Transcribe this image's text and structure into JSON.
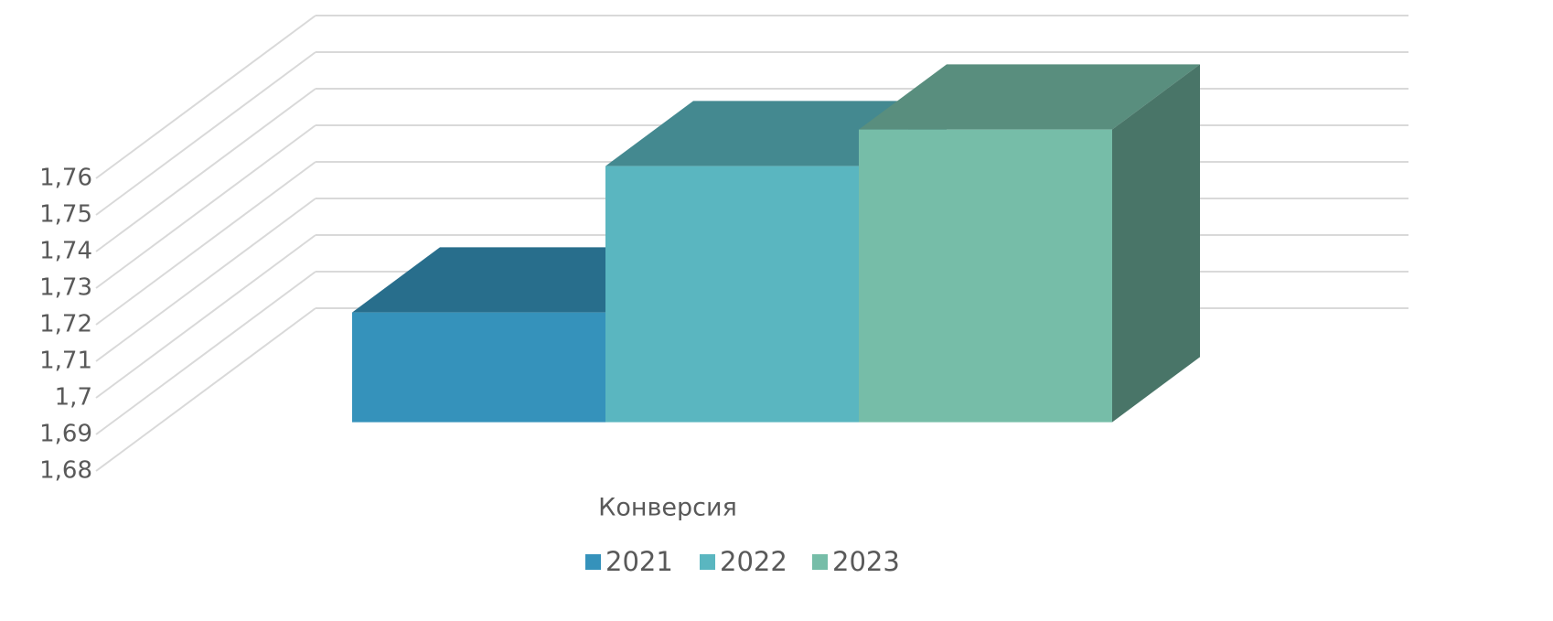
{
  "chart_data": {
    "type": "bar",
    "categories": [
      "Конверсия"
    ],
    "series": [
      {
        "name": "2021",
        "color": "#3592bb",
        "values": [
          1.71
        ]
      },
      {
        "name": "2022",
        "color": "#5ab6c0",
        "values": [
          1.75
        ]
      },
      {
        "name": "2023",
        "color": "#76bda8",
        "values": [
          1.76
        ]
      }
    ],
    "ylim": [
      1.68,
      1.76
    ],
    "yticks": [
      {
        "value": 1.68,
        "label": "1,68"
      },
      {
        "value": 1.69,
        "label": "1,69"
      },
      {
        "value": 1.7,
        "label": "1,7"
      },
      {
        "value": 1.71,
        "label": "1,71"
      },
      {
        "value": 1.72,
        "label": "1,72"
      },
      {
        "value": 1.73,
        "label": "1,73"
      },
      {
        "value": 1.74,
        "label": "1,74"
      },
      {
        "value": 1.75,
        "label": "1,75"
      },
      {
        "value": 1.76,
        "label": "1,76"
      }
    ],
    "grid": true,
    "legend": "bottom"
  }
}
